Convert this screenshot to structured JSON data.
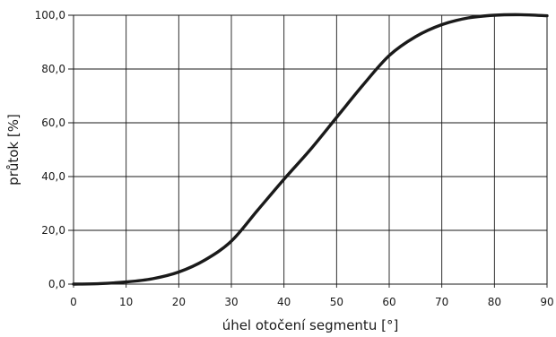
{
  "chart_data": {
    "type": "line",
    "title": "",
    "xlabel": "úhel otočení segmentu [°]",
    "ylabel": "průtok [%]",
    "xlim": [
      0,
      90
    ],
    "ylim": [
      0,
      100
    ],
    "x_ticks": [
      "0",
      "10",
      "20",
      "30",
      "40",
      "50",
      "60",
      "70",
      "80",
      "90"
    ],
    "y_ticks": [
      "0,0",
      "20,0",
      "40,0",
      "60,0",
      "80,0",
      "100,0"
    ],
    "grid": true,
    "legend": "none",
    "line_color": "#1a1a1a",
    "series": [
      {
        "x": [
          0,
          5,
          10,
          15,
          20,
          25,
          30,
          35,
          40,
          45,
          50,
          55,
          60,
          65,
          70,
          75,
          80,
          85,
          90
        ],
        "y": [
          0,
          0.2,
          0.8,
          2,
          4.5,
          9,
          16,
          27.5,
          39,
          50,
          62,
          74,
          85,
          92,
          96.5,
          99,
          100,
          100.2,
          99.8
        ]
      }
    ]
  }
}
